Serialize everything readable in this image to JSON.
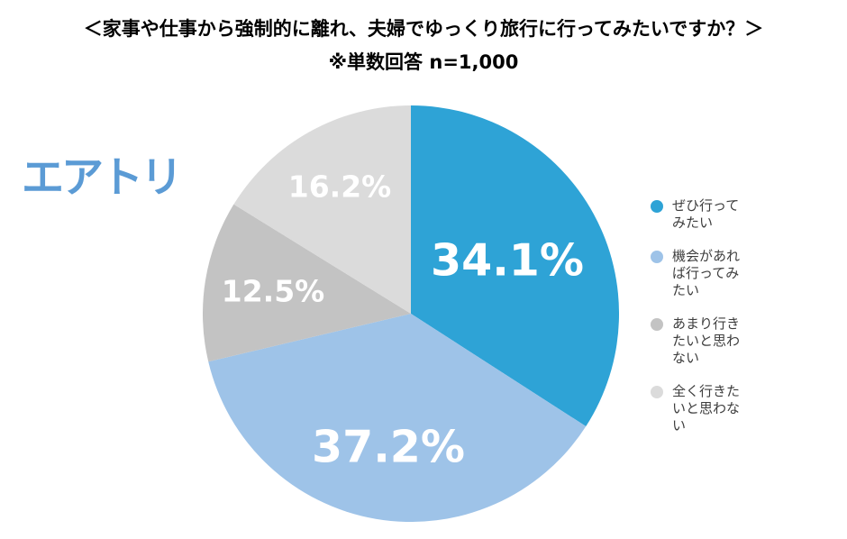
{
  "header": {
    "title": "＜家事や仕事から強制的に離れ、夫婦でゆっくり旅行に行ってみたいですか？＞",
    "subtitle": "※単数回答 n=1,000"
  },
  "logo": {
    "text": "エアトリ",
    "color": "#5B9BD5"
  },
  "chart_data": {
    "type": "pie",
    "title": "家事や仕事から強制的に離れ、夫婦でゆっくり旅行に行ってみたいですか？",
    "note": "※単数回答 n=1,000",
    "sample_size": "n=1,000",
    "start_angle_deg": 0,
    "direction": "clockwise",
    "legend_position": "right",
    "value_label_color": "#ffffff",
    "slices": [
      {
        "label": "ぜひ行ってみたい",
        "value": 34.1,
        "display": "34.1%",
        "color": "#2EA3D6"
      },
      {
        "label": "機会があれば行ってみたい",
        "value": 37.2,
        "display": "37.2%",
        "color": "#9EC3E8"
      },
      {
        "label": "あまり行きたいと思わない",
        "value": 12.5,
        "display": "12.5%",
        "color": "#C3C3C3"
      },
      {
        "label": "全く行きたいと思わない",
        "value": 16.2,
        "display": "16.2%",
        "color": "#DBDBDB"
      }
    ]
  }
}
